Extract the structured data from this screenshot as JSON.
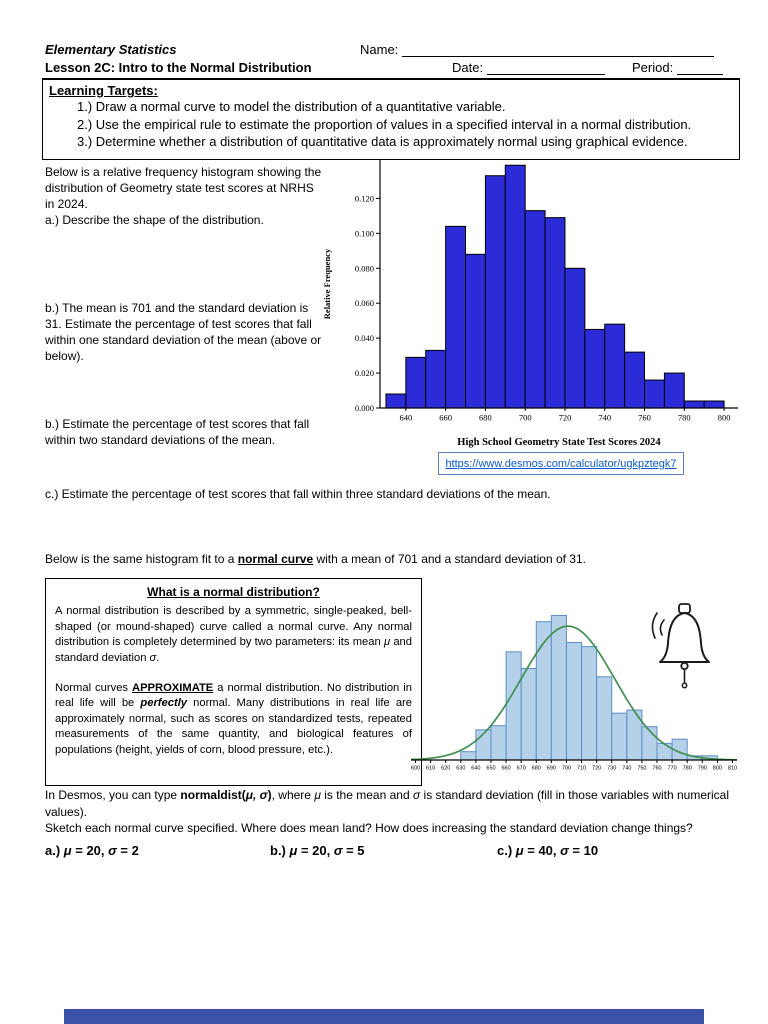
{
  "header": {
    "course_title": "Elementary Statistics",
    "lesson_title": "Lesson 2C: Intro to the Normal Distribution",
    "name_label": "Name:",
    "date_label": "Date:",
    "period_label": "Period:"
  },
  "learning_targets": {
    "title": "Learning Targets:",
    "items": [
      "1.) Draw a normal curve to model the distribution of a quantitative variable.",
      "2.) Use the empirical rule to estimate the proportion of values in a specified interval in a normal distribution.",
      "3.) Determine whether a distribution of quantitative data is approximately normal using graphical evidence."
    ]
  },
  "histogram_section": {
    "intro": "Below is a relative frequency histogram showing the distribution of Geometry state test scores at NRHS in 2024.",
    "question_a": "a.) Describe the shape of the distribution.",
    "question_b1": "b.) The mean is 701 and the standard deviation is 31. Estimate the percentage of test scores that fall within one standard deviation of the mean (above or below).",
    "question_b2": "b.) Estimate the percentage of test scores that fall within two standard deviations of the mean.",
    "question_c": "c.) Estimate the percentage of test scores that fall within three standard deviations of the mean.",
    "desmos_link": "https://www.desmos.com/calculator/ugkpztegk7"
  },
  "normal_section": {
    "intro_rich": [
      {
        "t": "Below is the same histogram fit to a "
      },
      {
        "t": "normal curve",
        "b": true,
        "u": true
      },
      {
        "t": " with a mean of 701 and a standard deviation of 31."
      }
    ],
    "info_box": {
      "title": "What is a normal distribution?",
      "p1": [
        {
          "t": "A normal distribution is described by a symmetric, single-peaked, bell-shaped (or mound-shaped) curve called a normal curve. Any normal distribution is completely determined by two parameters: its mean "
        },
        {
          "t": "μ",
          "i": true
        },
        {
          "t": " and standard deviation "
        },
        {
          "t": "σ",
          "i": true
        },
        {
          "t": "."
        }
      ],
      "p2": [
        {
          "t": "Normal curves "
        },
        {
          "t": "APPROXIMATE",
          "b": true,
          "u": true
        },
        {
          "t": " a normal distribution. No distribution in real life will be "
        },
        {
          "t": "perfectly",
          "b": true,
          "i": true
        },
        {
          "t": " normal. Many distributions in real life are approximately normal, such as scores on standardized tests, repeated measurements of the same quantity, and biological features of populations (height, yields of corn, blood pressure, etc.)."
        }
      ]
    }
  },
  "desmos_section": {
    "instruction_rich": [
      {
        "t": "In Desmos, you can type "
      },
      {
        "t": "normaldist(",
        "b": true
      },
      {
        "t": "μ, σ",
        "b": true,
        "i": true
      },
      {
        "t": ")",
        "b": true
      },
      {
        "t": ", where "
      },
      {
        "t": "μ",
        "i": true
      },
      {
        "t": " is the mean and "
      },
      {
        "t": "σ",
        "i": true
      },
      {
        "t": " is standard deviation (fill in those variables with numerical values)."
      }
    ],
    "sketch_prompt": "Sketch each normal curve specified. Where does mean land? How does increasing the standard deviation change things?",
    "item_a_rich": [
      {
        "t": "a.) ",
        "b": true
      },
      {
        "t": "μ",
        "b": true,
        "i": true
      },
      {
        "t": " = 20, ",
        "b": true
      },
      {
        "t": "σ",
        "b": true,
        "i": true
      },
      {
        "t": " = 2",
        "b": true
      }
    ],
    "item_b_rich": [
      {
        "t": "b.) ",
        "b": true
      },
      {
        "t": "μ",
        "b": true,
        "i": true
      },
      {
        "t": " = 20, ",
        "b": true
      },
      {
        "t": "σ",
        "b": true,
        "i": true
      },
      {
        "t": " = 5",
        "b": true
      }
    ],
    "item_c_rich": [
      {
        "t": "c.) ",
        "b": true
      },
      {
        "t": "μ",
        "b": true,
        "i": true
      },
      {
        "t": " = 40, ",
        "b": true
      },
      {
        "t": "σ",
        "b": true,
        "i": true
      },
      {
        "t": " = 10",
        "b": true
      }
    ]
  },
  "chart_data": [
    {
      "type": "bar",
      "title": "High School Geometry State Test Scores 2024",
      "ylabel": "Relative Frequency",
      "bin_width": 10,
      "bins": [
        630,
        640,
        650,
        660,
        670,
        680,
        690,
        700,
        710,
        720,
        730,
        740,
        750,
        760,
        770,
        780,
        790
      ],
      "values": [
        0.008,
        0.029,
        0.033,
        0.104,
        0.088,
        0.133,
        0.139,
        0.113,
        0.109,
        0.08,
        0.045,
        0.048,
        0.032,
        0.016,
        0.02,
        0.004,
        0.004
      ],
      "xlim": [
        627,
        807
      ],
      "ylim": [
        0,
        0.142
      ],
      "x_ticks": [
        640,
        660,
        680,
        700,
        720,
        740,
        760,
        780,
        800
      ],
      "y_ticks": [
        0.0,
        0.02,
        0.04,
        0.06,
        0.08,
        0.1,
        0.12
      ],
      "y_tick_decimals": 3,
      "bar_fill": "#2b2bd8",
      "bar_stroke": "#000000",
      "show_y_axis": true,
      "layout": {
        "margin": {
          "l": 64,
          "r": 10,
          "t": 6,
          "b": 44
        },
        "tick_font": 8.5,
        "title_font": 10.5
      }
    },
    {
      "type": "bar",
      "bin_width": 10,
      "bins": [
        630,
        640,
        650,
        660,
        670,
        680,
        690,
        700,
        710,
        720,
        730,
        740,
        750,
        760,
        770,
        780,
        790
      ],
      "values": [
        0.008,
        0.029,
        0.033,
        0.104,
        0.088,
        0.133,
        0.139,
        0.113,
        0.109,
        0.08,
        0.045,
        0.048,
        0.032,
        0.016,
        0.02,
        0.004,
        0.004
      ],
      "xlim": [
        597,
        813
      ],
      "ylim": [
        0,
        0.15
      ],
      "x_ticks": [
        600,
        610,
        620,
        630,
        640,
        650,
        660,
        670,
        680,
        690,
        700,
        710,
        720,
        730,
        740,
        750,
        760,
        770,
        780,
        790,
        800,
        810
      ],
      "y_ticks": [],
      "bar_fill": "#b5d0e9",
      "bar_stroke": "#5b8fc9",
      "show_y_axis": false,
      "curve": {
        "mean": 701,
        "sd": 31,
        "color": "#3f8f4f"
      },
      "layout": {
        "margin": {
          "l": 6,
          "r": 6,
          "t": 10,
          "b": 17
        },
        "tick_font": 5.5
      }
    }
  ],
  "colors": {
    "footer_bar": "#3c52a8",
    "link_box_border": "#5b7fc4",
    "link_text": "#0b5bd3"
  }
}
